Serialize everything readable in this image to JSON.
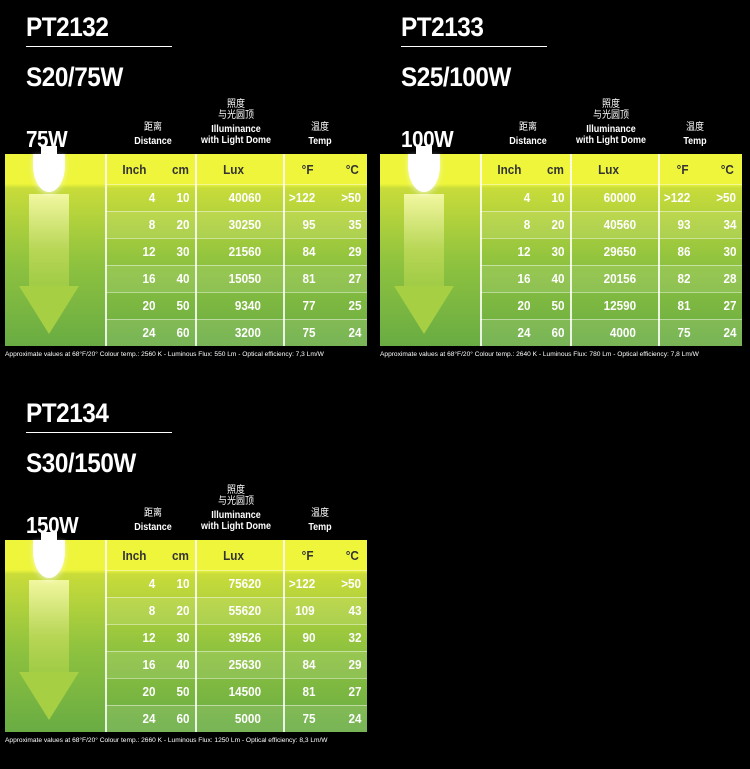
{
  "headers": {
    "distance_zh": "距离",
    "distance_en": "Distance",
    "illum_zh1": "照度",
    "illum_zh2": "与光圆顶",
    "illum_en1": "Illuminance",
    "illum_en2": "with Light Dome",
    "temp_zh": "温度",
    "temp_en": "Temp",
    "col_inch": "Inch",
    "col_cm": "cm",
    "col_lux": "Lux",
    "col_f": "°F",
    "col_c": "°C"
  },
  "panels": [
    {
      "model": "PT2132",
      "spec": "S20/75W",
      "watt": "75W",
      "footnote": "Approximate values at 68°F/20°  Colour temp.: 2560 K - Luminous Flux: 550 Lm - Optical efficiency: 7,3 Lm/W",
      "rows": [
        {
          "inch": "4",
          "cm": "10",
          "lux": "40060",
          "f": ">122",
          "c": ">50"
        },
        {
          "inch": "8",
          "cm": "20",
          "lux": "30250",
          "f": "95",
          "c": "35"
        },
        {
          "inch": "12",
          "cm": "30",
          "lux": "21560",
          "f": "84",
          "c": "29"
        },
        {
          "inch": "16",
          "cm": "40",
          "lux": "15050",
          "f": "81",
          "c": "27"
        },
        {
          "inch": "20",
          "cm": "50",
          "lux": "9340",
          "f": "77",
          "c": "25"
        },
        {
          "inch": "24",
          "cm": "60",
          "lux": "3200",
          "f": "75",
          "c": "24"
        }
      ]
    },
    {
      "model": "PT2133",
      "spec": "S25/100W",
      "watt": "100W",
      "footnote": "Approximate values at 68°F/20°  Colour temp.: 2640 K - Luminous Flux: 780 Lm - Optical efficiency: 7,8 Lm/W",
      "rows": [
        {
          "inch": "4",
          "cm": "10",
          "lux": "60000",
          "f": ">122",
          "c": ">50"
        },
        {
          "inch": "8",
          "cm": "20",
          "lux": "40560",
          "f": "93",
          "c": "34"
        },
        {
          "inch": "12",
          "cm": "30",
          "lux": "29650",
          "f": "86",
          "c": "30"
        },
        {
          "inch": "16",
          "cm": "40",
          "lux": "20156",
          "f": "82",
          "c": "28"
        },
        {
          "inch": "20",
          "cm": "50",
          "lux": "12590",
          "f": "81",
          "c": "27"
        },
        {
          "inch": "24",
          "cm": "60",
          "lux": "4000",
          "f": "75",
          "c": "24"
        }
      ]
    },
    {
      "model": "PT2134",
      "spec": "S30/150W",
      "watt": "150W",
      "footnote": "Approximate values at 68°F/20°  Colour temp.: 2660 K - Luminous Flux: 1250 Lm - Optical efficiency: 8,3 Lm/W",
      "rows": [
        {
          "inch": "4",
          "cm": "10",
          "lux": "75620",
          "f": ">122",
          "c": ">50"
        },
        {
          "inch": "8",
          "cm": "20",
          "lux": "55620",
          "f": "109",
          "c": "43"
        },
        {
          "inch": "12",
          "cm": "30",
          "lux": "39526",
          "f": "90",
          "c": "32"
        },
        {
          "inch": "16",
          "cm": "40",
          "lux": "25630",
          "f": "84",
          "c": "29"
        },
        {
          "inch": "20",
          "cm": "50",
          "lux": "14500",
          "f": "81",
          "c": "27"
        },
        {
          "inch": "24",
          "cm": "60",
          "lux": "5000",
          "f": "75",
          "c": "24"
        }
      ]
    }
  ]
}
